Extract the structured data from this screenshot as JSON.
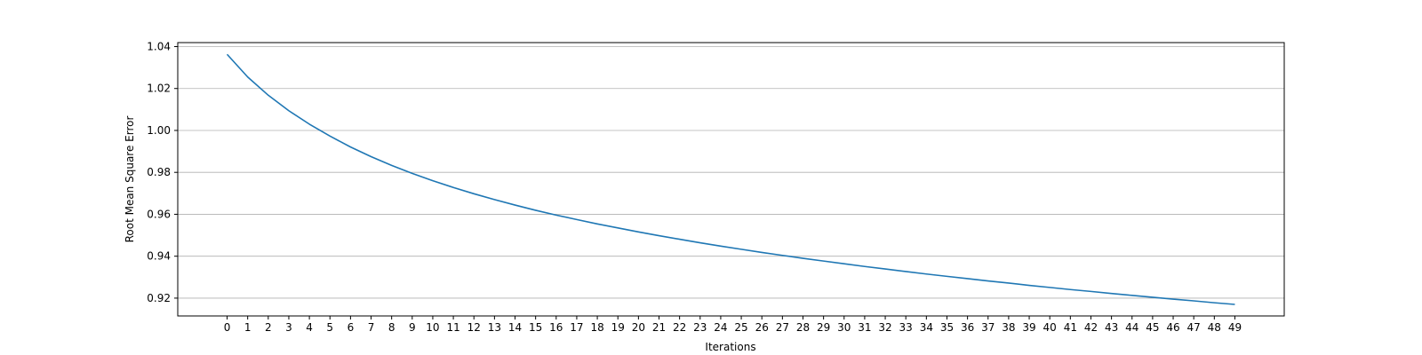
{
  "chart_data": {
    "type": "line",
    "title": "",
    "xlabel": "Iterations",
    "ylabel": "Root Mean Square Error",
    "xlim": [
      -2.4,
      51.4
    ],
    "ylim": [
      0.9115,
      1.0419
    ],
    "x_ticks": [
      0,
      1,
      2,
      3,
      4,
      5,
      6,
      7,
      8,
      9,
      10,
      11,
      12,
      13,
      14,
      15,
      16,
      17,
      18,
      19,
      20,
      21,
      22,
      23,
      24,
      25,
      26,
      27,
      28,
      29,
      30,
      31,
      32,
      33,
      34,
      35,
      36,
      37,
      38,
      39,
      40,
      41,
      42,
      43,
      44,
      45,
      46,
      47,
      48,
      49
    ],
    "y_ticks": [
      0.92,
      0.94,
      0.96,
      0.98,
      1.0,
      1.02,
      1.04
    ],
    "y_tick_labels": [
      "0.92",
      "0.94",
      "0.96",
      "0.98",
      "1.00",
      "1.02",
      "1.04"
    ],
    "grid": "horizontal",
    "legend": "none",
    "series": [
      {
        "color": "#1f77b4",
        "x": [
          0,
          1,
          2,
          3,
          4,
          5,
          6,
          7,
          8,
          9,
          10,
          11,
          12,
          13,
          14,
          15,
          16,
          17,
          18,
          19,
          20,
          21,
          22,
          23,
          24,
          25,
          26,
          27,
          28,
          29,
          30,
          31,
          32,
          33,
          34,
          35,
          36,
          37,
          38,
          39,
          40,
          41,
          42,
          43,
          44,
          45,
          46,
          47,
          48,
          49
        ],
        "values": [
          1.0363,
          1.0255,
          1.0168,
          1.0094,
          1.003,
          0.9973,
          0.9921,
          0.9875,
          0.9833,
          0.9795,
          0.976,
          0.9728,
          0.9698,
          0.967,
          0.9644,
          0.9619,
          0.9596,
          0.9575,
          0.9554,
          0.9535,
          0.9516,
          0.9498,
          0.9481,
          0.9464,
          0.9448,
          0.9433,
          0.9418,
          0.9404,
          0.939,
          0.9377,
          0.9364,
          0.9351,
          0.9339,
          0.9327,
          0.9315,
          0.9304,
          0.9293,
          0.9282,
          0.9272,
          0.9261,
          0.9251,
          0.9241,
          0.9232,
          0.9222,
          0.9213,
          0.9204,
          0.9195,
          0.9187,
          0.9178,
          0.917
        ]
      }
    ]
  },
  "colors": {
    "line": "#1f77b4",
    "grid": "#b0b0b0",
    "axis": "#000000"
  }
}
